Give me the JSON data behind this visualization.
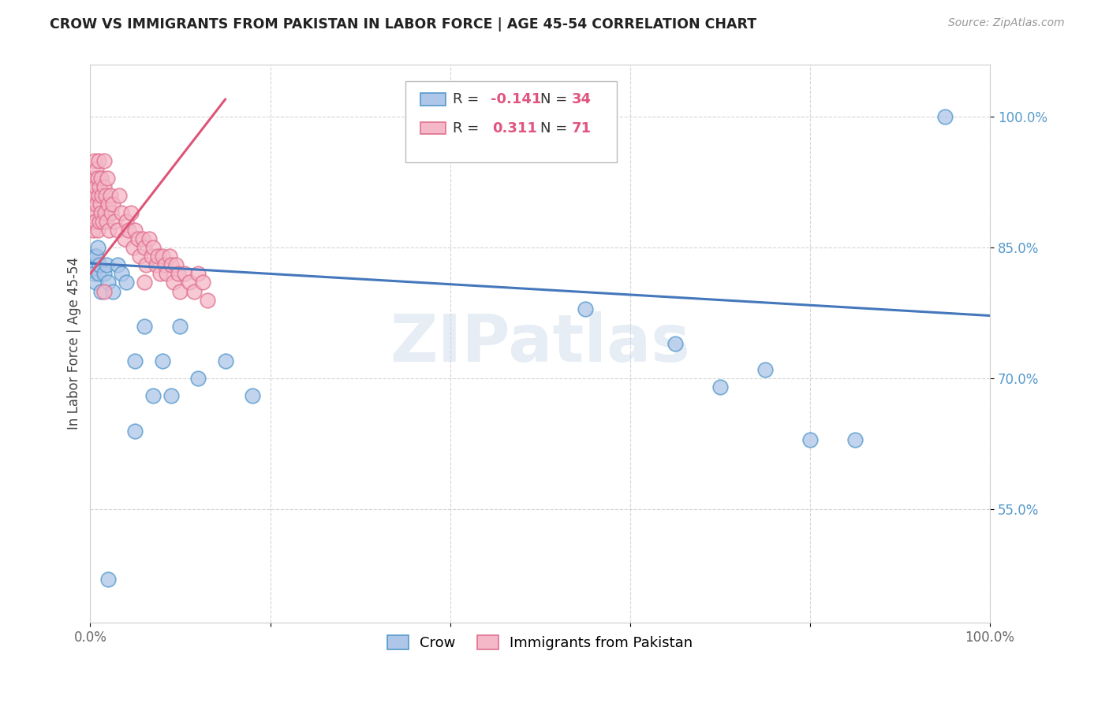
{
  "title": "CROW VS IMMIGRANTS FROM PAKISTAN IN LABOR FORCE | AGE 45-54 CORRELATION CHART",
  "source": "Source: ZipAtlas.com",
  "ylabel": "In Labor Force | Age 45-54",
  "xlim": [
    0,
    1.0
  ],
  "ylim": [
    0.42,
    1.06
  ],
  "xtick_positions": [
    0.0,
    0.2,
    0.4,
    0.6,
    0.8,
    1.0
  ],
  "xticklabels": [
    "0.0%",
    "",
    "",
    "",
    "",
    "100.0%"
  ],
  "ytick_positions": [
    0.55,
    0.7,
    0.85,
    1.0
  ],
  "ytick_labels": [
    "55.0%",
    "70.0%",
    "85.0%",
    "100.0%"
  ],
  "blue_face": "#aec6e8",
  "blue_edge": "#5599cc",
  "pink_face": "#f4b8c8",
  "pink_edge": "#e07090",
  "blue_line": "#4477bb",
  "pink_line": "#dd5577",
  "watermark": "ZIPatlas",
  "crow_x": [
    0.003,
    0.004,
    0.005,
    0.006,
    0.007,
    0.008,
    0.009,
    0.01,
    0.012,
    0.015,
    0.018,
    0.02,
    0.025,
    0.03,
    0.035,
    0.04,
    0.05,
    0.06,
    0.08,
    0.09,
    0.1,
    0.12,
    0.15,
    0.18,
    0.05,
    0.07,
    0.55,
    0.65,
    0.7,
    0.75,
    0.8,
    0.85,
    0.95,
    0.02
  ],
  "crow_y": [
    0.83,
    0.82,
    0.84,
    0.81,
    0.84,
    0.85,
    0.82,
    0.83,
    0.8,
    0.82,
    0.83,
    0.81,
    0.8,
    0.83,
    0.82,
    0.81,
    0.72,
    0.76,
    0.72,
    0.68,
    0.76,
    0.7,
    0.72,
    0.68,
    0.64,
    0.68,
    0.78,
    0.74,
    0.69,
    0.71,
    0.63,
    0.63,
    1.0,
    0.47
  ],
  "pak_x": [
    0.002,
    0.003,
    0.003,
    0.004,
    0.004,
    0.005,
    0.005,
    0.006,
    0.006,
    0.007,
    0.007,
    0.008,
    0.008,
    0.009,
    0.009,
    0.01,
    0.01,
    0.011,
    0.012,
    0.012,
    0.013,
    0.014,
    0.015,
    0.015,
    0.016,
    0.017,
    0.018,
    0.019,
    0.02,
    0.021,
    0.022,
    0.023,
    0.025,
    0.027,
    0.03,
    0.032,
    0.035,
    0.038,
    0.04,
    0.043,
    0.045,
    0.048,
    0.05,
    0.053,
    0.055,
    0.058,
    0.06,
    0.062,
    0.065,
    0.068,
    0.07,
    0.073,
    0.075,
    0.078,
    0.08,
    0.083,
    0.085,
    0.088,
    0.09,
    0.093,
    0.095,
    0.098,
    0.1,
    0.105,
    0.11,
    0.115,
    0.12,
    0.125,
    0.13,
    0.015,
    0.06
  ],
  "pak_y": [
    0.88,
    0.9,
    0.87,
    0.93,
    0.89,
    0.91,
    0.95,
    0.92,
    0.88,
    0.94,
    0.9,
    0.93,
    0.87,
    0.91,
    0.95,
    0.92,
    0.88,
    0.9,
    0.93,
    0.89,
    0.91,
    0.88,
    0.92,
    0.95,
    0.89,
    0.91,
    0.88,
    0.93,
    0.9,
    0.87,
    0.91,
    0.89,
    0.9,
    0.88,
    0.87,
    0.91,
    0.89,
    0.86,
    0.88,
    0.87,
    0.89,
    0.85,
    0.87,
    0.86,
    0.84,
    0.86,
    0.85,
    0.83,
    0.86,
    0.84,
    0.85,
    0.83,
    0.84,
    0.82,
    0.84,
    0.83,
    0.82,
    0.84,
    0.83,
    0.81,
    0.83,
    0.82,
    0.8,
    0.82,
    0.81,
    0.8,
    0.82,
    0.81,
    0.79,
    0.8,
    0.81
  ],
  "blue_trend_x": [
    0.0,
    1.0
  ],
  "blue_trend_y": [
    0.832,
    0.772
  ],
  "pink_trend_x": [
    0.0,
    0.15
  ],
  "pink_trend_y": [
    0.82,
    1.02
  ]
}
